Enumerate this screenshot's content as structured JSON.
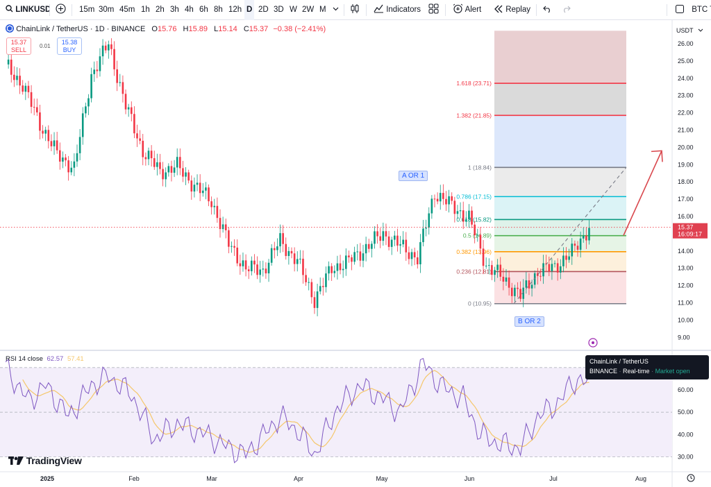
{
  "toolbar": {
    "symbol": "LINKUSDT",
    "intervals": [
      "15m",
      "30m",
      "45m",
      "1h",
      "2h",
      "3h",
      "4h",
      "6h",
      "8h",
      "12h",
      "D",
      "2D",
      "3D",
      "W",
      "2W",
      "M"
    ],
    "active_interval": "D",
    "indicators_label": "Indicators",
    "alert_label": "Alert",
    "replay_label": "Replay",
    "compare_label": "BTC T"
  },
  "legend": {
    "title": "ChainLink / TetherUS · 1D · BINANCE",
    "o_label": "O",
    "o_value": "15.76",
    "h_label": "H",
    "h_value": "15.89",
    "l_label": "L",
    "l_value": "15.14",
    "c_label": "C",
    "c_value": "15.37",
    "change": "−0.38 (−2.41%)"
  },
  "trade": {
    "sell_price": "15.37",
    "sell_label": "SELL",
    "spread": "0.01",
    "buy_price": "15.38",
    "buy_label": "BUY"
  },
  "price_axis": {
    "currency": "USDT",
    "ticks": [
      "26.00",
      "25.00",
      "24.00",
      "23.00",
      "22.00",
      "21.00",
      "20.00",
      "19.00",
      "18.00",
      "17.00",
      "16.00",
      "15.00",
      "14.00",
      "13.00",
      "12.00",
      "11.00",
      "10.00",
      "9.00"
    ],
    "last_price": "15.37",
    "countdown": "16:09:17"
  },
  "time_axis": {
    "labels": [
      "2025",
      "Feb",
      "Mar",
      "Apr",
      "May",
      "Jun",
      "Jul",
      "Aug"
    ]
  },
  "fib_levels": [
    {
      "label": "1.618 (23.71)",
      "price": 23.71,
      "color": "#f23645"
    },
    {
      "label": "1.382 (21.85)",
      "price": 21.85,
      "color": "#f23645"
    },
    {
      "label": "1 (18.84)",
      "price": 18.84,
      "color": "#787b86"
    },
    {
      "label": "0.786 (17.15)",
      "price": 17.15,
      "color": "#00bcd4"
    },
    {
      "label": "0.618 (15.82)",
      "price": 15.82,
      "color": "#089981"
    },
    {
      "label": "0.5 (14.89)",
      "price": 14.89,
      "color": "#4caf50"
    },
    {
      "label": "0.382 (13.96)",
      "price": 13.96,
      "color": "#ff9800"
    },
    {
      "label": "0.236 (12.81)",
      "price": 12.81,
      "color": "#b2535b"
    },
    {
      "label": "0 (10.95)",
      "price": 10.95,
      "color": "#787b86"
    }
  ],
  "wave_labels": {
    "top": "A OR 1",
    "bottom": "B OR 2"
  },
  "rsi": {
    "title": "RSI 14 close",
    "value": "62.57",
    "ma_value": "57.41",
    "ticks": [
      "60.00",
      "50.00",
      "40.00",
      "30.00"
    ]
  },
  "tooltip": {
    "title": "ChainLink / TetherUS",
    "exchange": "BINANCE",
    "mode": "Real-time",
    "status": "Market open"
  },
  "logo": "TradingView",
  "colors": {
    "up": "#089981",
    "down": "#f23645",
    "rsi_line": "#7e57c2",
    "rsi_ma": "#f5c76b"
  }
}
